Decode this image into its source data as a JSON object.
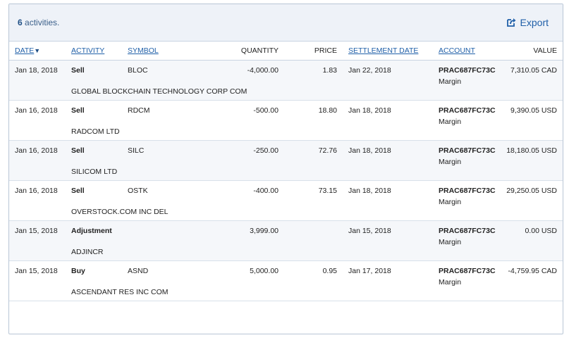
{
  "header": {
    "count_number": "6",
    "count_label": " activities.",
    "export_label": "Export"
  },
  "columns": {
    "date": "DATE",
    "date_sort_indicator": "▼",
    "activity": "ACTIVITY",
    "symbol": "SYMBOL",
    "quantity": "QUANTITY",
    "price": "PRICE",
    "settlement_date": "SETTLEMENT DATE",
    "account": "ACCOUNT",
    "value": "VALUE"
  },
  "rows": [
    {
      "date": "Jan 18, 2018",
      "activity": "Sell",
      "symbol": "BLOC",
      "quantity": "-4,000.00",
      "price": "1.83",
      "settlement": "Jan 22, 2018",
      "account": "PRAC687FC73C",
      "account_type": "Margin",
      "value": "7,310.05 CAD",
      "description": "GLOBAL BLOCKCHAIN TECHNOLOGY CORP COM"
    },
    {
      "date": "Jan 16, 2018",
      "activity": "Sell",
      "symbol": "RDCM",
      "quantity": "-500.00",
      "price": "18.80",
      "settlement": "Jan 18, 2018",
      "account": "PRAC687FC73C",
      "account_type": "Margin",
      "value": "9,390.05 USD",
      "description": "RADCOM LTD"
    },
    {
      "date": "Jan 16, 2018",
      "activity": "Sell",
      "symbol": "SILC",
      "quantity": "-250.00",
      "price": "72.76",
      "settlement": "Jan 18, 2018",
      "account": "PRAC687FC73C",
      "account_type": "Margin",
      "value": "18,180.05 USD",
      "description": "SILICOM LTD"
    },
    {
      "date": "Jan 16, 2018",
      "activity": "Sell",
      "symbol": "OSTK",
      "quantity": "-400.00",
      "price": "73.15",
      "settlement": "Jan 18, 2018",
      "account": "PRAC687FC73C",
      "account_type": "Margin",
      "value": "29,250.05 USD",
      "description": "OVERSTOCK.COM INC DEL"
    },
    {
      "date": "Jan 15, 2018",
      "activity": "Adjustment",
      "symbol": "",
      "quantity": "3,999.00",
      "price": "",
      "settlement": "Jan 15, 2018",
      "account": "PRAC687FC73C",
      "account_type": "Margin",
      "value": "0.00 USD",
      "description": "ADJINCR"
    },
    {
      "date": "Jan 15, 2018",
      "activity": "Buy",
      "symbol": "ASND",
      "quantity": "5,000.00",
      "price": "0.95",
      "settlement": "Jan 17, 2018",
      "account": "PRAC687FC73C",
      "account_type": "Margin",
      "value": "-4,759.95 CAD",
      "description": "ASCENDANT RES INC COM"
    }
  ],
  "colors": {
    "link": "#1f5fa8",
    "header_bg": "#eef2f8",
    "row_shade": "#f5f7fa",
    "border": "#b9c6d6"
  },
  "icons": {
    "export": "export-share-icon"
  }
}
